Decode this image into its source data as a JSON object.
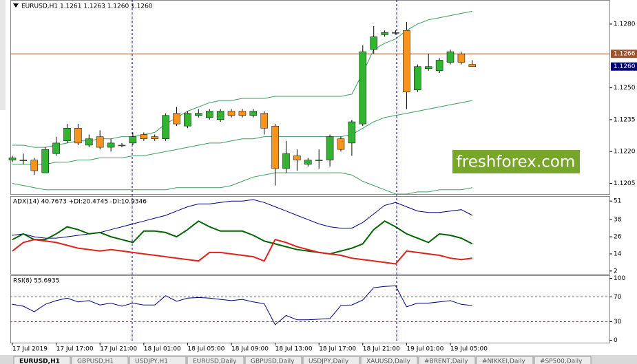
{
  "header": {
    "title": "EURUSD,H1  1.1261 1.1263 1.1260 1.1260"
  },
  "watermark": "freshforex.com",
  "tabs": [
    "EURUSD,H1",
    "GBPUSD,H1",
    "USDJPY,H1",
    "EURUSD,Daily",
    "GBPUSD,Daily",
    "USDJPY,Daily",
    "XAUUSD,Daily",
    "#BRENT,Daily",
    "#NIKKEI,Daily",
    "#SP500,Daily"
  ],
  "chart_data": [
    {
      "type": "candlestick",
      "categories": [
        "17 Jul 2019",
        null,
        null,
        null,
        "17 Jul 17:00",
        null,
        null,
        null,
        "17 Jul 21:00",
        null,
        null,
        null,
        "18 Jul 01:00",
        null,
        null,
        null,
        "18 Jul 05:00",
        null,
        null,
        null,
        "18 Jul 09:00",
        null,
        null,
        null,
        "18 Jul 13:00",
        null,
        null,
        null,
        "18 Jul 17:00",
        null,
        null,
        null,
        "18 Jul 21:00",
        null,
        null,
        null,
        "19 Jul 01:00",
        null,
        null,
        null,
        "19 Jul 05:00",
        null,
        null
      ],
      "open": [
        1.1216,
        1.1216,
        1.1216,
        1.121,
        1.1219,
        1.1225,
        1.1231,
        1.1223,
        1.1227,
        1.1222,
        1.1223,
        1.1224,
        1.1228,
        1.1227,
        1.1226,
        1.1238,
        1.1232,
        1.1237,
        1.1236,
        1.1235,
        1.1239,
        1.1239,
        1.1237,
        1.1238,
        1.1232,
        1.1212,
        1.1218,
        1.1214,
        1.1216,
        1.1216,
        1.1226,
        1.1224,
        1.1233,
        1.1268,
        1.1275,
        1.1276,
        1.1277,
        1.1249,
        1.1259,
        1.1258,
        1.1262,
        1.1266,
        1.1261
      ],
      "high": [
        1.1218,
        1.1219,
        1.1217,
        1.1222,
        1.1227,
        1.1233,
        1.1233,
        1.1228,
        1.123,
        1.1226,
        1.1224,
        1.1229,
        1.1229,
        1.1228,
        1.1238,
        1.1241,
        1.1239,
        1.124,
        1.124,
        1.124,
        1.124,
        1.124,
        1.124,
        1.1239,
        1.1233,
        1.1225,
        1.1221,
        1.1217,
        1.1221,
        1.1228,
        1.1227,
        1.1235,
        1.127,
        1.1279,
        1.1277,
        1.1277,
        1.1281,
        1.1261,
        1.1266,
        1.1264,
        1.1268,
        1.1267,
        1.1263
      ],
      "low": [
        1.1215,
        1.1214,
        1.1209,
        1.121,
        1.1218,
        1.1224,
        1.1223,
        1.1222,
        1.1221,
        1.122,
        1.1222,
        1.1223,
        1.1225,
        1.1225,
        1.1225,
        1.1232,
        1.1231,
        1.1236,
        1.1235,
        1.1234,
        1.1236,
        1.1236,
        1.1236,
        1.1228,
        1.1204,
        1.121,
        1.1211,
        1.1213,
        1.1212,
        1.1213,
        1.122,
        1.1218,
        1.1232,
        1.1266,
        1.1274,
        1.1275,
        1.124,
        1.1248,
        1.1258,
        1.1257,
        1.1261,
        1.1261,
        1.126
      ],
      "close": [
        1.1217,
        1.1216,
        1.1211,
        1.1221,
        1.1224,
        1.1231,
        1.1224,
        1.1226,
        1.1222,
        1.1224,
        1.1223,
        1.1227,
        1.1226,
        1.1226,
        1.1237,
        1.1233,
        1.1238,
        1.1238,
        1.1239,
        1.1239,
        1.1237,
        1.1237,
        1.1239,
        1.1231,
        1.1212,
        1.1219,
        1.1216,
        1.1216,
        1.1216,
        1.1227,
        1.1221,
        1.1234,
        1.1267,
        1.1274,
        1.1276,
        1.1276,
        1.1248,
        1.126,
        1.126,
        1.1263,
        1.1267,
        1.1262,
        1.126
      ],
      "bull_color": "#32b432",
      "bear_color": "#f7941d",
      "series": [
        {
          "color": "#3a9d5d",
          "values": [
            1.1223,
            1.1223,
            1.1222,
            1.1222,
            1.1223,
            1.1224,
            1.1225,
            1.1225,
            1.1226,
            1.1226,
            1.1227,
            1.1227,
            1.1228,
            1.1229,
            1.1233,
            1.1236,
            1.1239,
            1.1241,
            1.1243,
            1.1244,
            1.1244,
            1.1245,
            1.1245,
            1.1245,
            1.1246,
            1.1246,
            1.1246,
            1.1246,
            1.1246,
            1.1246,
            1.1246,
            1.1247,
            1.1257,
            1.1268,
            1.1271,
            1.1273,
            1.1277,
            1.128,
            1.1282,
            1.1283,
            1.1284,
            1.1285,
            1.1286
          ]
        },
        {
          "color": "#3a9d5d",
          "values": [
            1.1214,
            1.1214,
            1.1214,
            1.1214,
            1.1215,
            1.1215,
            1.1216,
            1.1216,
            1.1217,
            1.1217,
            1.1217,
            1.1218,
            1.1218,
            1.1219,
            1.122,
            1.1221,
            1.1222,
            1.1223,
            1.1224,
            1.1224,
            1.1225,
            1.1226,
            1.1226,
            1.1227,
            1.1227,
            1.1227,
            1.1227,
            1.1227,
            1.1227,
            1.1227,
            1.1227,
            1.1228,
            1.1231,
            1.1234,
            1.1236,
            1.1237,
            1.1238,
            1.1239,
            1.124,
            1.1241,
            1.1242,
            1.1243,
            1.1244
          ]
        },
        {
          "color": "#3a9d5d",
          "values": [
            1.1205,
            1.1204,
            1.1203,
            1.1202,
            1.1202,
            1.1202,
            1.1202,
            1.1202,
            1.1202,
            1.1202,
            1.1202,
            1.1202,
            1.1202,
            1.1202,
            1.1202,
            1.1203,
            1.1203,
            1.1203,
            1.1203,
            1.1203,
            1.1204,
            1.1206,
            1.1208,
            1.1209,
            1.121,
            1.121,
            1.121,
            1.121,
            1.121,
            1.121,
            1.121,
            1.1209,
            1.1206,
            1.1204,
            1.1202,
            1.12,
            1.12,
            1.1201,
            1.1201,
            1.1202,
            1.1202,
            1.1202,
            1.1203
          ]
        }
      ],
      "ylim": [
        1.12,
        1.1291
      ],
      "yticks": [
        {
          "value": 1.128,
          "label": "1.1280"
        },
        {
          "value": 1.125,
          "label": "1.1250"
        },
        1.1235,
        {
          "value": 1.122,
          "label": "1.1220"
        },
        1.1205
      ],
      "hline": {
        "value": 1.1266,
        "label": "1.1266",
        "color": "#a0522d"
      },
      "last_price": {
        "value": 1.126,
        "label": "1.1260",
        "color": "#000080"
      }
    },
    {
      "type": "line",
      "title": "ADX(14) 40.7673 +DI:20.4745 -DI:10.9346",
      "series": [
        {
          "color": "#000080",
          "values": [
            27,
            28,
            26,
            25,
            25,
            26,
            27,
            28,
            29,
            31,
            33,
            35,
            37,
            39,
            41,
            44,
            47,
            49,
            49,
            50,
            51,
            51,
            52,
            50,
            47,
            44,
            41,
            38,
            35,
            33,
            32,
            32,
            36,
            42,
            48,
            50,
            47,
            44,
            43,
            43,
            44,
            45,
            41
          ]
        },
        {
          "color": "#006400",
          "values": [
            24,
            28,
            24,
            24,
            28,
            33,
            31,
            28,
            29,
            26,
            24,
            22,
            30,
            30,
            29,
            26,
            31,
            37,
            33,
            30,
            30,
            30,
            27,
            23,
            21,
            19,
            17,
            16,
            15,
            14,
            16,
            18,
            21,
            31,
            37,
            33,
            28,
            25,
            22,
            28,
            27,
            25,
            21
          ]
        },
        {
          "color": "#e0201b",
          "values": [
            16,
            22,
            24,
            23,
            22,
            20,
            18,
            17,
            16,
            17,
            16,
            15,
            14,
            13,
            12,
            11,
            10,
            9,
            15,
            15,
            14,
            13,
            12,
            9,
            24,
            22,
            19,
            17,
            15,
            14,
            13,
            11,
            10,
            9,
            8,
            7,
            16,
            15,
            14,
            13,
            11,
            10,
            11
          ]
        }
      ],
      "ylim": [
        0,
        54
      ],
      "yticks": [
        51,
        38,
        26,
        14,
        2
      ]
    },
    {
      "type": "line",
      "title": "RSI(8) 55.6935",
      "series": [
        {
          "color": "#000080",
          "values": [
            58,
            55,
            46,
            58,
            64,
            68,
            62,
            64,
            57,
            60,
            55,
            60,
            57,
            57,
            72,
            63,
            68,
            69,
            68,
            66,
            64,
            66,
            62,
            59,
            25,
            40,
            33,
            33,
            34,
            35,
            56,
            57,
            65,
            85,
            87,
            88,
            54,
            60,
            60,
            62,
            64,
            58,
            56
          ]
        }
      ],
      "levels": [
        70,
        30
      ],
      "level_color": "#e0201b",
      "ylim": [
        -4,
        104
      ],
      "yticks": [
        100,
        70,
        30,
        0
      ]
    }
  ]
}
